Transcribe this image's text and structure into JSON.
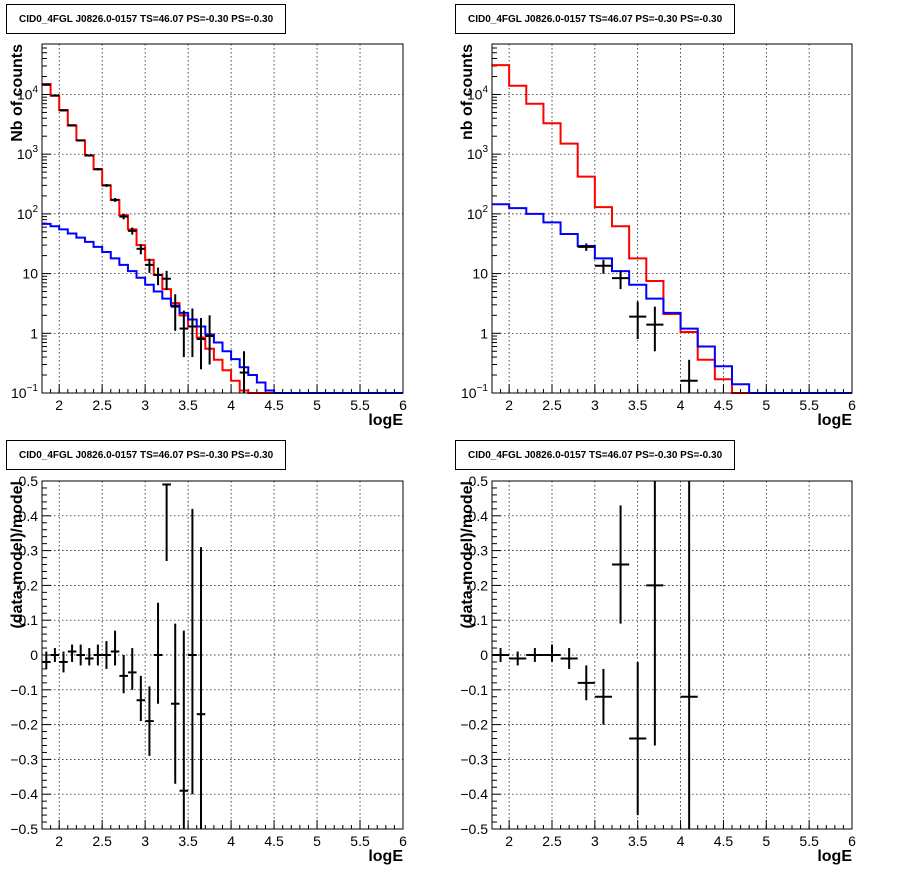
{
  "chart_data": [
    {
      "type": "line",
      "title": "CID0_4FGL J0826.0-0157 TS=46.07 PS=-0.30 PS=-0.30",
      "xlabel": "logE",
      "ylabel": "Nb of counts",
      "xlim": [
        1.8,
        6.0
      ],
      "ylim": [
        0.1,
        70000
      ],
      "yscale": "log",
      "grid": true,
      "xticks": [
        "2",
        "2.5",
        "3",
        "3.5",
        "4",
        "4.5",
        "5",
        "5.5",
        "6"
      ],
      "yticks": [
        "10^-1",
        "1",
        "10",
        "10^2",
        "10^3",
        "10^4"
      ],
      "series": [
        {
          "color": "#ff0000",
          "style": "histogram",
          "edges": [
            1.8,
            1.9,
            2.0,
            2.1,
            2.2,
            2.3,
            2.4,
            2.5,
            2.6,
            2.7,
            2.8,
            2.9,
            3.0,
            3.1,
            3.2,
            3.3,
            3.4,
            3.5,
            3.6,
            3.7,
            3.8,
            3.9,
            4.0,
            4.1,
            4.2,
            4.3,
            4.4,
            4.5,
            4.6,
            4.7,
            4.8,
            4.9,
            5.0,
            5.1,
            5.2,
            5.3,
            5.4,
            5.5,
            5.6,
            5.7,
            5.8,
            5.9,
            6.0
          ],
          "values": [
            15000,
            9500,
            5500,
            3000,
            1700,
            950,
            560,
            300,
            170,
            95,
            55,
            30,
            17,
            9.5,
            5.5,
            3.2,
            2,
            1.3,
            0.85,
            0.55,
            0.36,
            0.24,
            0.16,
            0.11,
            0.1,
            0.1,
            0.1,
            0.1,
            0.1,
            0.1,
            0.1,
            0.1,
            0.1,
            0.1,
            0.1,
            0.1,
            0.1,
            0.1,
            0.1,
            0.1,
            0.1,
            0.1
          ]
        },
        {
          "color": "#0000ff",
          "style": "histogram",
          "edges": [
            1.8,
            1.9,
            2.0,
            2.1,
            2.2,
            2.3,
            2.4,
            2.5,
            2.6,
            2.7,
            2.8,
            2.9,
            3.0,
            3.1,
            3.2,
            3.3,
            3.4,
            3.5,
            3.6,
            3.7,
            3.8,
            3.9,
            4.0,
            4.1,
            4.2,
            4.3,
            4.4,
            4.5,
            4.6,
            4.7,
            4.8,
            4.9,
            5.0,
            5.1,
            5.2,
            5.3,
            5.4,
            5.5,
            5.6,
            5.7,
            5.8,
            5.9,
            6.0
          ],
          "values": [
            68,
            62,
            55,
            47,
            40,
            34,
            28,
            23,
            18,
            14,
            11,
            8.5,
            6.5,
            5,
            3.8,
            2.9,
            2.2,
            1.7,
            1.3,
            0.95,
            0.7,
            0.5,
            0.37,
            0.27,
            0.2,
            0.15,
            0.11,
            0.1,
            0.1,
            0.1,
            0.1,
            0.1,
            0.1,
            0.1,
            0.1,
            0.1,
            0.1,
            0.1,
            0.1,
            0.1,
            0.1,
            0.1
          ]
        },
        {
          "color": "#000000",
          "style": "points",
          "points": [
            {
              "x": 1.85,
              "y": 14500,
              "xerr": 0.05,
              "ylo": 14300,
              "yhi": 14700
            },
            {
              "x": 1.95,
              "y": 9600,
              "xerr": 0.05,
              "ylo": 9400,
              "yhi": 9800
            },
            {
              "x": 2.05,
              "y": 5400,
              "xerr": 0.05,
              "ylo": 5250,
              "yhi": 5550
            },
            {
              "x": 2.15,
              "y": 3050,
              "xerr": 0.05,
              "ylo": 2950,
              "yhi": 3150
            },
            {
              "x": 2.25,
              "y": 1700,
              "xerr": 0.05,
              "ylo": 1640,
              "yhi": 1760
            },
            {
              "x": 2.35,
              "y": 950,
              "xerr": 0.05,
              "ylo": 910,
              "yhi": 990
            },
            {
              "x": 2.45,
              "y": 560,
              "xerr": 0.05,
              "ylo": 535,
              "yhi": 585
            },
            {
              "x": 2.55,
              "y": 300,
              "xerr": 0.05,
              "ylo": 283,
              "yhi": 317
            },
            {
              "x": 2.65,
              "y": 172,
              "xerr": 0.05,
              "ylo": 159,
              "yhi": 185
            },
            {
              "x": 2.75,
              "y": 90,
              "xerr": 0.05,
              "ylo": 81,
              "yhi": 100
            },
            {
              "x": 2.85,
              "y": 52,
              "xerr": 0.05,
              "ylo": 45,
              "yhi": 59
            },
            {
              "x": 2.95,
              "y": 26,
              "xerr": 0.05,
              "ylo": 21,
              "yhi": 31
            },
            {
              "x": 3.05,
              "y": 14,
              "xerr": 0.05,
              "ylo": 10.3,
              "yhi": 17.7
            },
            {
              "x": 3.15,
              "y": 9.5,
              "xerr": 0.05,
              "ylo": 6.4,
              "yhi": 12.6
            },
            {
              "x": 3.25,
              "y": 8.2,
              "xerr": 0.05,
              "ylo": 5.3,
              "yhi": 11.1
            },
            {
              "x": 3.35,
              "y": 2.8,
              "xerr": 0.05,
              "ylo": 1.1,
              "yhi": 4.5
            },
            {
              "x": 3.45,
              "y": 1.2,
              "xerr": 0.05,
              "ylo": 0.4,
              "yhi": 2.4
            },
            {
              "x": 3.55,
              "y": 1.3,
              "xerr": 0.05,
              "ylo": 0.4,
              "yhi": 2.6
            },
            {
              "x": 3.65,
              "y": 0.8,
              "xerr": 0.05,
              "ylo": 0.25,
              "yhi": 1.8
            },
            {
              "x": 3.75,
              "y": 0.9,
              "xerr": 0.05,
              "ylo": 0.3,
              "yhi": 2.0
            },
            {
              "x": 4.15,
              "y": 0.22,
              "xerr": 0.05,
              "ylo": 0.1,
              "yhi": 0.5
            }
          ]
        }
      ]
    },
    {
      "type": "line",
      "title": "CID0_4FGL J0826.0-0157 TS=46.07 PS=-0.30 PS=-0.30",
      "xlabel": "logE",
      "ylabel": "nb of counts",
      "xlim": [
        1.8,
        6.0
      ],
      "ylim": [
        0.1,
        70000
      ],
      "yscale": "log",
      "grid": true,
      "xticks": [
        "2",
        "2.5",
        "3",
        "3.5",
        "4",
        "4.5",
        "5",
        "5.5",
        "6"
      ],
      "yticks": [
        "10^-1",
        "1",
        "10",
        "10^2",
        "10^3",
        "10^4"
      ],
      "series": [
        {
          "color": "#ff0000",
          "style": "histogram",
          "edges": [
            1.8,
            2.0,
            2.2,
            2.4,
            2.6,
            2.8,
            3.0,
            3.2,
            3.4,
            3.6,
            3.8,
            4.0,
            4.2,
            4.4,
            4.6,
            4.8,
            5.0,
            5.2,
            5.4,
            5.6,
            5.8,
            6.0
          ],
          "values": [
            31000,
            14000,
            7000,
            3300,
            1500,
            420,
            130,
            62,
            18,
            7.5,
            2.1,
            1.05,
            0.36,
            0.17,
            0.1,
            0.1,
            0.1,
            0.1,
            0.1,
            0.1,
            0.1
          ]
        },
        {
          "color": "#0000ff",
          "style": "histogram",
          "edges": [
            1.8,
            2.0,
            2.2,
            2.4,
            2.6,
            2.8,
            3.0,
            3.2,
            3.4,
            3.6,
            3.8,
            4.0,
            4.2,
            4.4,
            4.6,
            4.8,
            5.0,
            5.2,
            5.4,
            5.6,
            5.8,
            6.0
          ],
          "values": [
            145,
            125,
            100,
            72,
            46,
            29,
            18,
            11,
            6.5,
            3.8,
            2.2,
            1.2,
            0.6,
            0.28,
            0.14,
            0.1,
            0.1,
            0.1,
            0.1,
            0.1,
            0.1
          ]
        },
        {
          "color": "#000000",
          "style": "points",
          "points": [
            {
              "x": 2.9,
              "y": 28,
              "xerr": 0.1,
              "ylo": 24,
              "yhi": 32
            },
            {
              "x": 3.1,
              "y": 13.5,
              "xerr": 0.1,
              "ylo": 10,
              "yhi": 17
            },
            {
              "x": 3.3,
              "y": 8.4,
              "xerr": 0.1,
              "ylo": 5.5,
              "yhi": 11.3
            },
            {
              "x": 3.5,
              "y": 1.9,
              "xerr": 0.1,
              "ylo": 0.8,
              "yhi": 3.4
            },
            {
              "x": 3.7,
              "y": 1.4,
              "xerr": 0.1,
              "ylo": 0.5,
              "yhi": 2.8
            },
            {
              "x": 4.1,
              "y": 0.16,
              "xerr": 0.1,
              "ylo": 0.1,
              "yhi": 0.36
            }
          ]
        }
      ]
    },
    {
      "type": "scatter",
      "title": "CID0_4FGL J0826.0-0157 TS=46.07 PS=-0.30 PS=-0.30",
      "xlabel": "logE",
      "ylabel": "(data-model)/model",
      "xlim": [
        1.8,
        6.0
      ],
      "ylim": [
        -0.5,
        0.5
      ],
      "grid": true,
      "xticks": [
        "2",
        "2.5",
        "3",
        "3.5",
        "4",
        "4.5",
        "5",
        "5.5",
        "6"
      ],
      "yticks": [
        "−0.5",
        "−0.4",
        "−0.3",
        "−0.2",
        "−0.1",
        "0",
        "0.1",
        "0.2",
        "0.3",
        "0.4",
        "0.5"
      ],
      "series": [
        {
          "color": "#000000",
          "points": [
            {
              "x": 1.85,
              "y": -0.02,
              "xerr": 0.05,
              "ylo": -0.04,
              "yhi": 0.01
            },
            {
              "x": 1.95,
              "y": 0.0,
              "xerr": 0.05,
              "ylo": -0.02,
              "yhi": 0.02
            },
            {
              "x": 2.05,
              "y": -0.02,
              "xerr": 0.05,
              "ylo": -0.05,
              "yhi": 0.01
            },
            {
              "x": 2.15,
              "y": 0.01,
              "xerr": 0.05,
              "ylo": -0.02,
              "yhi": 0.03
            },
            {
              "x": 2.25,
              "y": 0.0,
              "xerr": 0.05,
              "ylo": -0.03,
              "yhi": 0.03
            },
            {
              "x": 2.35,
              "y": -0.01,
              "xerr": 0.05,
              "ylo": -0.03,
              "yhi": 0.02
            },
            {
              "x": 2.45,
              "y": 0.0,
              "xerr": 0.05,
              "ylo": -0.03,
              "yhi": 0.03
            },
            {
              "x": 2.55,
              "y": 0.0,
              "xerr": 0.05,
              "ylo": -0.04,
              "yhi": 0.04
            },
            {
              "x": 2.65,
              "y": 0.01,
              "xerr": 0.05,
              "ylo": -0.03,
              "yhi": 0.07
            },
            {
              "x": 2.75,
              "y": -0.06,
              "xerr": 0.05,
              "ylo": -0.11,
              "yhi": 0.0
            },
            {
              "x": 2.85,
              "y": -0.05,
              "xerr": 0.05,
              "ylo": -0.1,
              "yhi": 0.02
            },
            {
              "x": 2.95,
              "y": -0.13,
              "xerr": 0.05,
              "ylo": -0.19,
              "yhi": -0.06
            },
            {
              "x": 3.05,
              "y": -0.19,
              "xerr": 0.05,
              "ylo": -0.29,
              "yhi": -0.09
            },
            {
              "x": 3.15,
              "y": 0.0,
              "xerr": 0.05,
              "ylo": -0.14,
              "yhi": 0.15
            },
            {
              "x": 3.25,
              "y": 0.49,
              "xerr": 0.05,
              "ylo": 0.27,
              "yhi": 0.49
            },
            {
              "x": 3.35,
              "y": -0.14,
              "xerr": 0.05,
              "ylo": -0.37,
              "yhi": 0.09
            },
            {
              "x": 3.45,
              "y": -0.39,
              "xerr": 0.05,
              "ylo": -0.5,
              "yhi": 0.07
            },
            {
              "x": 3.55,
              "y": 0.0,
              "xerr": 0.05,
              "ylo": -0.4,
              "yhi": 0.42
            },
            {
              "x": 3.65,
              "y": -0.17,
              "xerr": 0.05,
              "ylo": -0.5,
              "yhi": 0.31
            }
          ]
        }
      ]
    },
    {
      "type": "scatter",
      "title": "CID0_4FGL J0826.0-0157 TS=46.07 PS=-0.30 PS=-0.30",
      "xlabel": "logE",
      "ylabel": "(data-model)/model",
      "xlim": [
        1.8,
        6.0
      ],
      "ylim": [
        -0.5,
        0.5
      ],
      "grid": true,
      "xticks": [
        "2",
        "2.5",
        "3",
        "3.5",
        "4",
        "4.5",
        "5",
        "5.5",
        "6"
      ],
      "yticks": [
        "−0.5",
        "−0.4",
        "−0.3",
        "−0.2",
        "−0.1",
        "0",
        "0.1",
        "0.2",
        "0.3",
        "0.4",
        "0.5"
      ],
      "series": [
        {
          "color": "#000000",
          "points": [
            {
              "x": 1.9,
              "y": 0.0,
              "xerr": 0.1,
              "ylo": -0.02,
              "yhi": 0.02
            },
            {
              "x": 2.1,
              "y": -0.01,
              "xerr": 0.1,
              "ylo": -0.03,
              "yhi": 0.01
            },
            {
              "x": 2.3,
              "y": 0.0,
              "xerr": 0.1,
              "ylo": -0.02,
              "yhi": 0.02
            },
            {
              "x": 2.5,
              "y": 0.0,
              "xerr": 0.1,
              "ylo": -0.02,
              "yhi": 0.03
            },
            {
              "x": 2.7,
              "y": -0.01,
              "xerr": 0.1,
              "ylo": -0.04,
              "yhi": 0.02
            },
            {
              "x": 2.9,
              "y": -0.08,
              "xerr": 0.1,
              "ylo": -0.13,
              "yhi": -0.03
            },
            {
              "x": 3.1,
              "y": -0.12,
              "xerr": 0.1,
              "ylo": -0.2,
              "yhi": -0.04
            },
            {
              "x": 3.3,
              "y": 0.26,
              "xerr": 0.1,
              "ylo": 0.09,
              "yhi": 0.43
            },
            {
              "x": 3.5,
              "y": -0.24,
              "xerr": 0.1,
              "ylo": -0.46,
              "yhi": -0.02
            },
            {
              "x": 3.7,
              "y": 0.2,
              "xerr": 0.1,
              "ylo": -0.26,
              "yhi": 0.5
            },
            {
              "x": 4.1,
              "y": -0.12,
              "xerr": 0.1,
              "ylo": -0.5,
              "yhi": 0.5
            }
          ]
        }
      ]
    }
  ]
}
